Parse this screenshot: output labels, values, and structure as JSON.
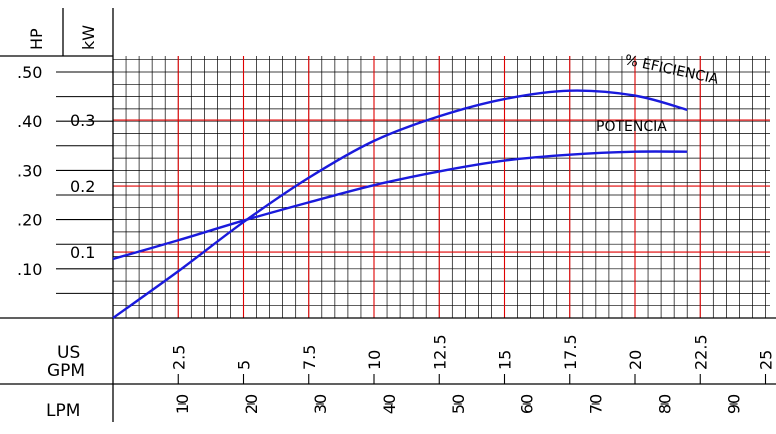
{
  "chart_data": {
    "type": "line",
    "y_axis_hp": {
      "label": "HP",
      "ticks": [
        ".10",
        ".20",
        ".30",
        ".40",
        ".50"
      ],
      "values": [
        0.1,
        0.2,
        0.3,
        0.4,
        0.5
      ]
    },
    "y_axis_kw": {
      "label": "kW",
      "ticks": [
        "0.1",
        "0.2",
        "0.3"
      ],
      "values": [
        0.1,
        0.2,
        0.3
      ]
    },
    "x_axis_gpm": {
      "label_line1": "US",
      "label_line2": "GPM",
      "ticks": [
        "2.5",
        "5",
        "7.5",
        "10",
        "12.5",
        "15",
        "17.5",
        "20",
        "22.5",
        "25"
      ],
      "values": [
        2.5,
        5,
        7.5,
        10,
        12.5,
        15,
        17.5,
        20,
        22.5,
        25
      ]
    },
    "x_axis_lpm": {
      "label": "LPM",
      "ticks": [
        "10",
        "20",
        "30",
        "40",
        "50",
        "60",
        "70",
        "80",
        "90"
      ],
      "values": [
        10,
        20,
        30,
        40,
        50,
        60,
        70,
        80,
        90
      ]
    },
    "xlim_gpm": [
      0,
      25
    ],
    "ylim_hp": [
      0,
      0.53
    ],
    "grid": true,
    "series": [
      {
        "name": "% EFICIENCIA",
        "color": "#1a1adc",
        "x_gpm": [
          0,
          2.5,
          5,
          7.5,
          10,
          12.5,
          15,
          17.5,
          20,
          22
        ],
        "y_hp": [
          0.0,
          0.095,
          0.195,
          0.285,
          0.36,
          0.41,
          0.445,
          0.462,
          0.452,
          0.423
        ]
      },
      {
        "name": "POTENCIA",
        "color": "#1a1adc",
        "x_gpm": [
          0,
          2.5,
          5,
          7.5,
          10,
          12.5,
          15,
          17.5,
          20,
          22
        ],
        "y_hp": [
          0.12,
          0.158,
          0.198,
          0.235,
          0.27,
          0.298,
          0.32,
          0.332,
          0.338,
          0.338
        ]
      }
    ]
  }
}
